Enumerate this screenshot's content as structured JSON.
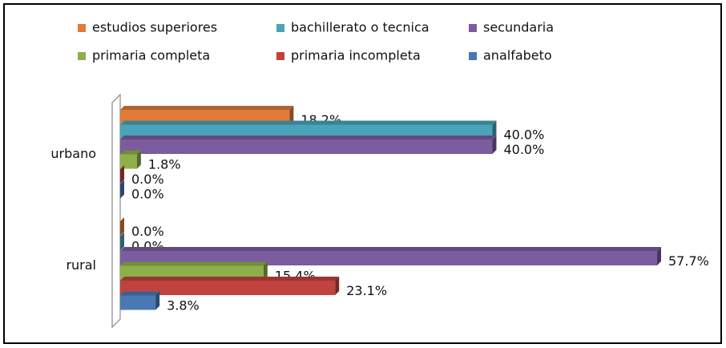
{
  "chart_data": {
    "type": "bar",
    "orientation": "horizontal",
    "categories": [
      "urbano",
      "rural"
    ],
    "series": [
      {
        "name": "estudios superiores",
        "color": "#e07b39",
        "values": [
          18.2,
          0
        ],
        "value_labels": [
          "18.2%",
          "0.0%"
        ]
      },
      {
        "name": "bachillerato o tecnica",
        "color": "#4aa3b8",
        "values": [
          40,
          0
        ],
        "value_labels": [
          "40.0%",
          "0.0%"
        ]
      },
      {
        "name": "secundaria",
        "color": "#7b5c9e",
        "values": [
          40,
          57.7
        ],
        "value_labels": [
          "40.0%",
          "57.7%"
        ]
      },
      {
        "name": "primaria completa",
        "color": "#8db04a",
        "values": [
          1.8,
          15.4
        ],
        "value_labels": [
          "1.8%",
          "15.4%"
        ]
      },
      {
        "name": "primaria incompleta",
        "color": "#c0433f",
        "values": [
          0,
          23.1
        ],
        "value_labels": [
          "0.0%",
          "23.1%"
        ]
      },
      {
        "name": "analfabeto",
        "color": "#4a78b5",
        "values": [
          0,
          3.8
        ],
        "value_labels": [
          "0.0%",
          "3.8%"
        ]
      }
    ],
    "legend": "top"
  }
}
